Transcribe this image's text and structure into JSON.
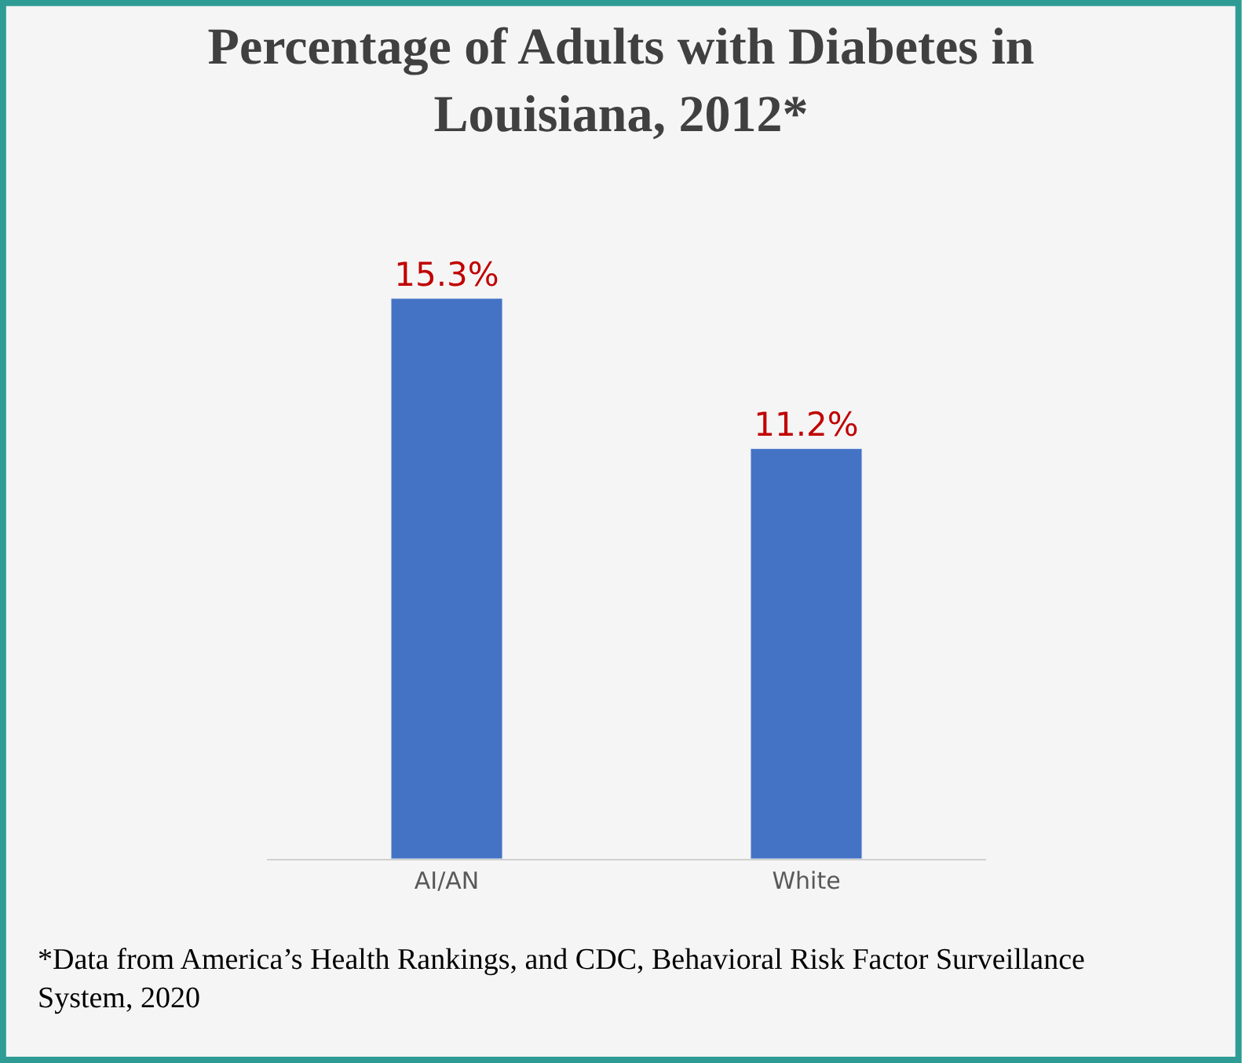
{
  "chart_data": {
    "type": "bar",
    "title": "Percentage of Adults with Diabetes in Louisiana, 2012*",
    "categories": [
      "AI/AN",
      "White"
    ],
    "values": [
      15.3,
      11.2
    ],
    "value_labels": [
      "15.3%",
      "11.2%"
    ],
    "color": "#4472c4",
    "annotations": [
      "*Data from America’s Health Rankings, and CDC, Behavioral Risk Factor Surveillance System, 2020"
    ]
  }
}
